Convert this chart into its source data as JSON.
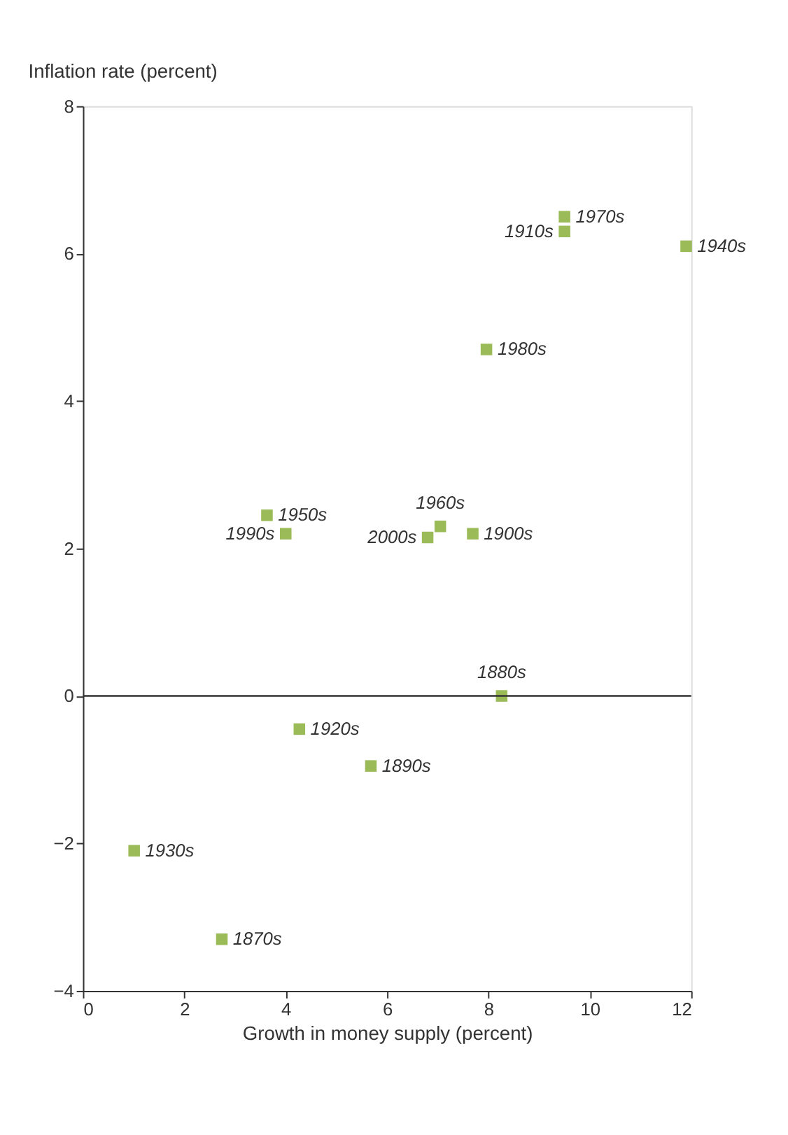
{
  "chart_data": {
    "type": "scatter",
    "xlabel": "Growth in money supply (percent)",
    "ylabel": "Inflation rate (percent)",
    "x": [
      11.9,
      9.5,
      9.5,
      7.96,
      7.69,
      7.05,
      6.8,
      8.26,
      5.68,
      3.63,
      4.0,
      4.27,
      2.74,
      1.01
    ],
    "series": [
      {
        "color": "#9bbb59",
        "values": [
          6.1,
          6.5,
          6.3,
          4.7,
          2.2,
          2.3,
          2.15,
          0.0,
          -0.95,
          2.45,
          2.2,
          -0.45,
          -3.3,
          -2.1
        ]
      }
    ],
    "xlim": [
      0,
      12
    ],
    "xticks": [
      0,
      2,
      4,
      6,
      8,
      10,
      12
    ],
    "ylim": [
      -4,
      8
    ],
    "yticks": [
      -4,
      -2,
      0,
      2,
      4,
      6,
      8
    ],
    "marker": "square",
    "grid": false,
    "ref_lines": [
      {
        "axis": "y",
        "value": 0
      }
    ],
    "annotations": [
      {
        "text": "1940s",
        "x": 11.9,
        "y": 6.1
      },
      {
        "text": "1970s",
        "x": 9.5,
        "y": 6.5
      },
      {
        "text": "1910s",
        "x": 9.5,
        "y": 6.3
      },
      {
        "text": "1980s",
        "x": 7.96,
        "y": 4.7
      },
      {
        "text": "1900s",
        "x": 7.69,
        "y": 2.2
      },
      {
        "text": "1960s",
        "x": 7.05,
        "y": 2.3
      },
      {
        "text": "2000s",
        "x": 6.8,
        "y": 2.15
      },
      {
        "text": "1880s",
        "x": 8.26,
        "y": 0.0
      },
      {
        "text": "1890s",
        "x": 5.68,
        "y": -0.95
      },
      {
        "text": "1950s",
        "x": 3.63,
        "y": 2.45
      },
      {
        "text": "1990s",
        "x": 4.0,
        "y": 2.2
      },
      {
        "text": "1920s",
        "x": 4.27,
        "y": -0.45
      },
      {
        "text": "1870s",
        "x": 2.74,
        "y": -3.3
      },
      {
        "text": "1930s",
        "x": 1.01,
        "y": -2.1
      }
    ]
  }
}
